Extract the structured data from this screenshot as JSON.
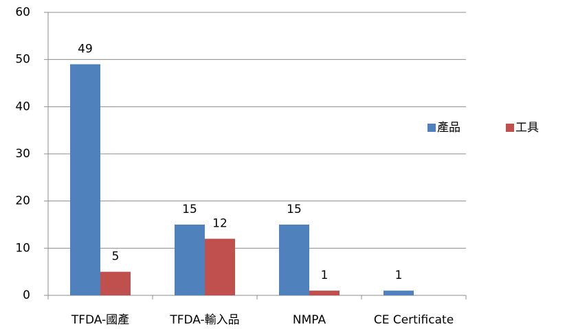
{
  "chart_data": {
    "type": "bar",
    "categories": [
      "TFDA-國產",
      "TFDA-輸入品",
      "NMPA",
      "CE Certificate"
    ],
    "series": [
      {
        "name": "產品",
        "color": "#4f81bd",
        "values": [
          49,
          15,
          15,
          1
        ]
      },
      {
        "name": "工具",
        "color": "#c0504d",
        "values": [
          5,
          12,
          1,
          null
        ]
      }
    ],
    "ylim": [
      0,
      60
    ],
    "yticks": [
      0,
      10,
      20,
      30,
      40,
      50,
      60
    ],
    "grid": true,
    "legend": "right"
  }
}
